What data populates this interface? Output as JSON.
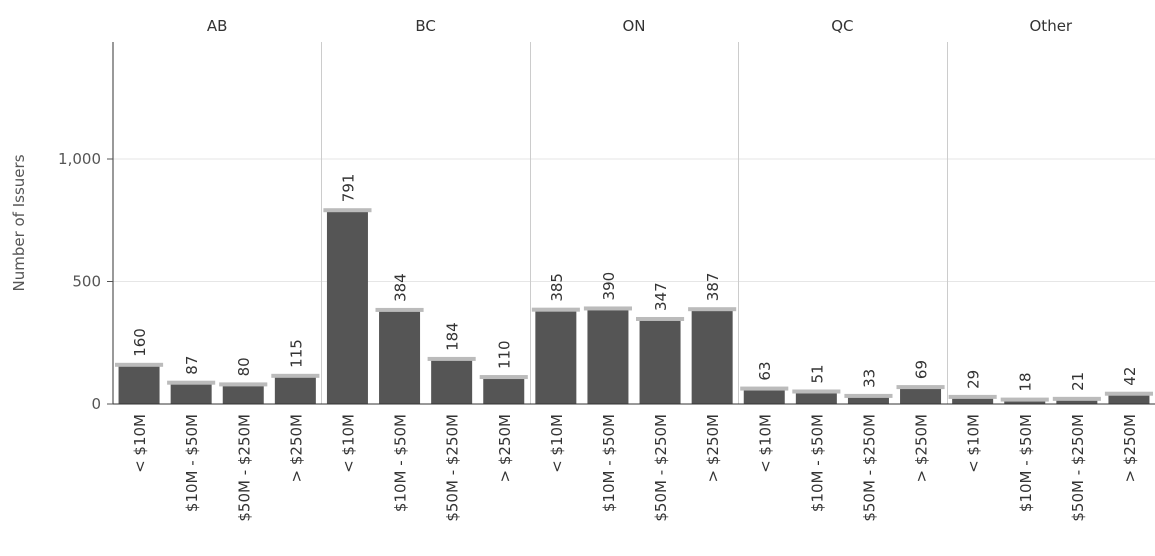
{
  "chart_data": {
    "type": "bar",
    "ylabel": "Number of Issuers",
    "ylim": [
      0,
      1450
    ],
    "yticks": [
      {
        "value": 0,
        "label": "0"
      },
      {
        "value": 500,
        "label": "500"
      },
      {
        "value": 1000,
        "label": "1,000"
      }
    ],
    "grid": true,
    "bar_color": "#555555",
    "ref_color": "#bbbbbb",
    "categories": [
      "< $10M",
      "$10M - $50M",
      "$50M - $250M",
      "> $250M"
    ],
    "panels": [
      {
        "name": "AB",
        "values": [
          160,
          87,
          80,
          115
        ]
      },
      {
        "name": "BC",
        "values": [
          791,
          384,
          184,
          110
        ]
      },
      {
        "name": "ON",
        "values": [
          385,
          390,
          347,
          387
        ]
      },
      {
        "name": "QC",
        "values": [
          63,
          51,
          33,
          69
        ]
      },
      {
        "name": "Other",
        "values": [
          29,
          18,
          21,
          42
        ]
      }
    ]
  }
}
